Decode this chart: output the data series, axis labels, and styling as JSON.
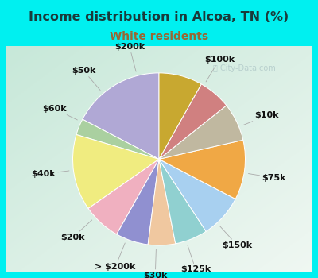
{
  "title": "Income distribution in Alcoa, TN (%)",
  "subtitle": "White residents",
  "title_color": "#1a3a3a",
  "subtitle_color": "#996633",
  "bg_cyan": "#00f0f0",
  "labels": [
    "$100k",
    "$10k",
    "$75k",
    "$150k",
    "$125k",
    "$30k",
    "> $200k",
    "$20k",
    "$40k",
    "$60k",
    "$50k",
    "$200k"
  ],
  "values": [
    17,
    3,
    14,
    7,
    6,
    5,
    6,
    8,
    11,
    7,
    6,
    8
  ],
  "colors": [
    "#b0a8d5",
    "#aad0a0",
    "#f0ec80",
    "#f0b0c0",
    "#9090d0",
    "#f0c8a0",
    "#90d0d0",
    "#a8d0f0",
    "#f0a845",
    "#c0b8a0",
    "#d08080",
    "#c8a830"
  ],
  "startangle": 90,
  "label_fontsize": 8.0,
  "label_r": 1.35
}
